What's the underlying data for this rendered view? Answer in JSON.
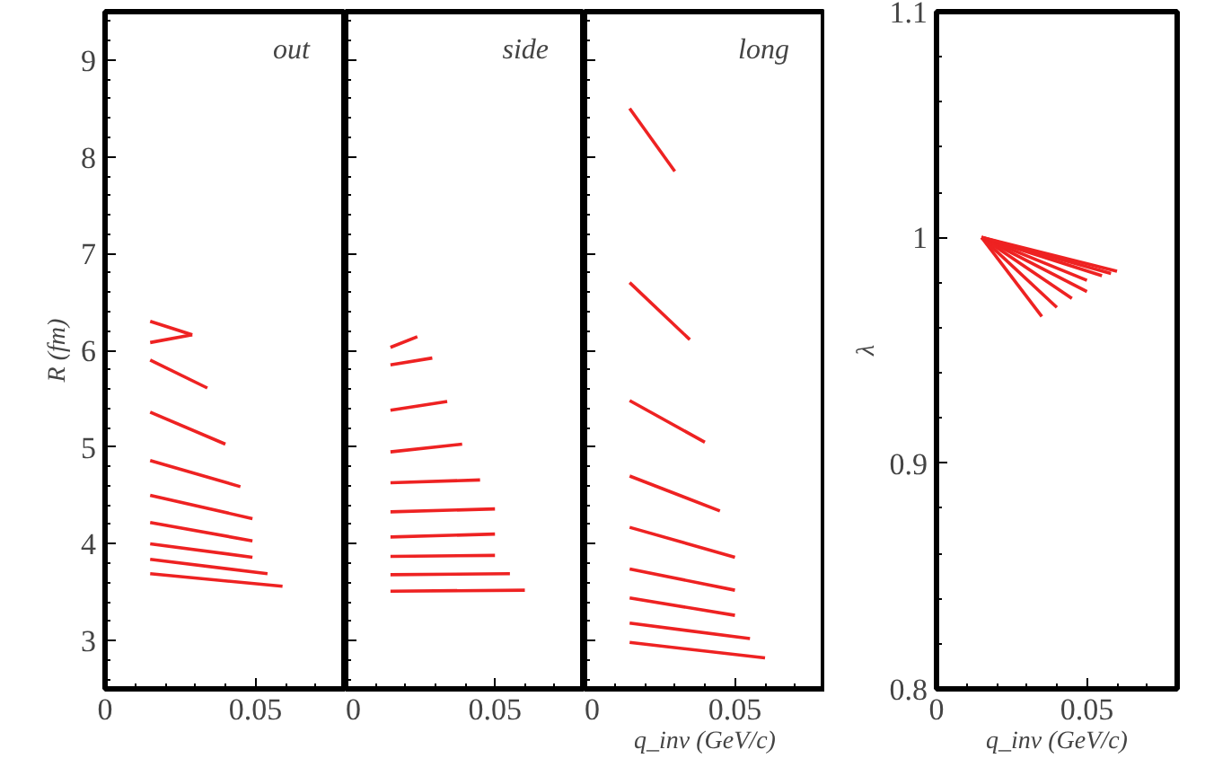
{
  "chart_data": [
    {
      "type": "line",
      "title": "out",
      "ylabel": "R (fm)",
      "xlim": [
        0,
        0.08
      ],
      "ylim": [
        2.5,
        9.5
      ],
      "xticks": [
        0,
        0.05
      ],
      "yticks": [
        3,
        4,
        5,
        6,
        7,
        8,
        9
      ],
      "grid": false,
      "series": [
        {
          "color": "#ee2222",
          "x": [
            0.015,
            0.029
          ],
          "values": [
            6.3,
            6.16
          ]
        },
        {
          "color": "#ee2222",
          "x": [
            0.015,
            0.029
          ],
          "values": [
            6.08,
            6.16
          ]
        },
        {
          "color": "#ee2222",
          "x": [
            0.015,
            0.034
          ],
          "values": [
            5.9,
            5.61
          ]
        },
        {
          "color": "#ee2222",
          "x": [
            0.015,
            0.04
          ],
          "values": [
            5.36,
            5.03
          ]
        },
        {
          "color": "#ee2222",
          "x": [
            0.015,
            0.045
          ],
          "values": [
            4.86,
            4.59
          ]
        },
        {
          "color": "#ee2222",
          "x": [
            0.015,
            0.049
          ],
          "values": [
            4.5,
            4.26
          ]
        },
        {
          "color": "#ee2222",
          "x": [
            0.015,
            0.049
          ],
          "values": [
            4.22,
            4.03
          ]
        },
        {
          "color": "#ee2222",
          "x": [
            0.015,
            0.049
          ],
          "values": [
            4.0,
            3.86
          ]
        },
        {
          "color": "#ee2222",
          "x": [
            0.015,
            0.054
          ],
          "values": [
            3.84,
            3.69
          ]
        },
        {
          "color": "#ee2222",
          "x": [
            0.015,
            0.059
          ],
          "values": [
            3.69,
            3.56
          ]
        }
      ]
    },
    {
      "type": "line",
      "title": "side",
      "xlim": [
        0,
        0.08
      ],
      "ylim": [
        2.5,
        9.5
      ],
      "xticks": [
        0,
        0.05
      ],
      "yticks": [
        3,
        4,
        5,
        6,
        7,
        8,
        9
      ],
      "tick_labels": "x",
      "grid": false,
      "series": [
        {
          "color": "#ee2222",
          "x": [
            0.015,
            0.024
          ],
          "values": [
            6.03,
            6.14
          ]
        },
        {
          "color": "#ee2222",
          "x": [
            0.015,
            0.029
          ],
          "values": [
            5.85,
            5.92
          ]
        },
        {
          "color": "#ee2222",
          "x": [
            0.015,
            0.034
          ],
          "values": [
            5.38,
            5.47
          ]
        },
        {
          "color": "#ee2222",
          "x": [
            0.015,
            0.039
          ],
          "values": [
            4.95,
            5.03
          ]
        },
        {
          "color": "#ee2222",
          "x": [
            0.015,
            0.045
          ],
          "values": [
            4.63,
            4.66
          ]
        },
        {
          "color": "#ee2222",
          "x": [
            0.015,
            0.05
          ],
          "values": [
            4.33,
            4.36
          ]
        },
        {
          "color": "#ee2222",
          "x": [
            0.015,
            0.05
          ],
          "values": [
            4.07,
            4.1
          ]
        },
        {
          "color": "#ee2222",
          "x": [
            0.015,
            0.05
          ],
          "values": [
            3.87,
            3.88
          ]
        },
        {
          "color": "#ee2222",
          "x": [
            0.015,
            0.055
          ],
          "values": [
            3.68,
            3.69
          ]
        },
        {
          "color": "#ee2222",
          "x": [
            0.015,
            0.06
          ],
          "values": [
            3.51,
            3.52
          ]
        }
      ]
    },
    {
      "type": "line",
      "title": "long",
      "xlabel": "q_inv (GeV/c)",
      "xlim": [
        0,
        0.08
      ],
      "ylim": [
        2.5,
        9.5
      ],
      "xticks": [
        0,
        0.05
      ],
      "yticks": [
        3,
        4,
        5,
        6,
        7,
        8,
        9
      ],
      "tick_labels": "x",
      "grid": false,
      "series": [
        {
          "color": "#ee2222",
          "x": [
            0.015,
            0.03
          ],
          "values": [
            8.5,
            7.85
          ]
        },
        {
          "color": "#ee2222",
          "x": [
            0.015,
            0.035
          ],
          "values": [
            6.7,
            6.11
          ]
        },
        {
          "color": "#ee2222",
          "x": [
            0.015,
            0.04
          ],
          "values": [
            5.48,
            5.05
          ]
        },
        {
          "color": "#ee2222",
          "x": [
            0.015,
            0.045
          ],
          "values": [
            4.7,
            4.34
          ]
        },
        {
          "color": "#ee2222",
          "x": [
            0.015,
            0.05
          ],
          "values": [
            4.17,
            3.86
          ]
        },
        {
          "color": "#ee2222",
          "x": [
            0.015,
            0.05
          ],
          "values": [
            3.74,
            3.52
          ]
        },
        {
          "color": "#ee2222",
          "x": [
            0.015,
            0.05
          ],
          "values": [
            3.44,
            3.26
          ]
        },
        {
          "color": "#ee2222",
          "x": [
            0.015,
            0.055
          ],
          "values": [
            3.18,
            3.02
          ]
        },
        {
          "color": "#ee2222",
          "x": [
            0.015,
            0.06
          ],
          "values": [
            2.98,
            2.82
          ]
        }
      ]
    },
    {
      "type": "line",
      "ylabel": "λ",
      "xlabel": "q_inv (GeV/c)",
      "xlim": [
        0,
        0.08
      ],
      "ylim": [
        0.8,
        1.1
      ],
      "xticks": [
        0,
        0.05
      ],
      "yticks": [
        0.8,
        0.9,
        1,
        1.1
      ],
      "grid": false,
      "series": [
        {
          "color": "#ee2222",
          "x": [
            0.015,
            0.035
          ],
          "values": [
            1.0,
            0.965
          ]
        },
        {
          "color": "#ee2222",
          "x": [
            0.015,
            0.04
          ],
          "values": [
            1.0,
            0.969
          ]
        },
        {
          "color": "#ee2222",
          "x": [
            0.015,
            0.045
          ],
          "values": [
            1.0,
            0.973
          ]
        },
        {
          "color": "#ee2222",
          "x": [
            0.015,
            0.05
          ],
          "values": [
            1.0,
            0.976
          ]
        },
        {
          "color": "#ee2222",
          "x": [
            0.015,
            0.05
          ],
          "values": [
            1.0,
            0.981
          ]
        },
        {
          "color": "#ee2222",
          "x": [
            0.015,
            0.055
          ],
          "values": [
            1.0,
            0.983
          ]
        },
        {
          "color": "#ee2222",
          "x": [
            0.015,
            0.058
          ],
          "values": [
            1.0,
            0.984
          ]
        },
        {
          "color": "#ee2222",
          "x": [
            0.015,
            0.06
          ],
          "values": [
            1.0,
            0.985
          ]
        }
      ]
    }
  ]
}
